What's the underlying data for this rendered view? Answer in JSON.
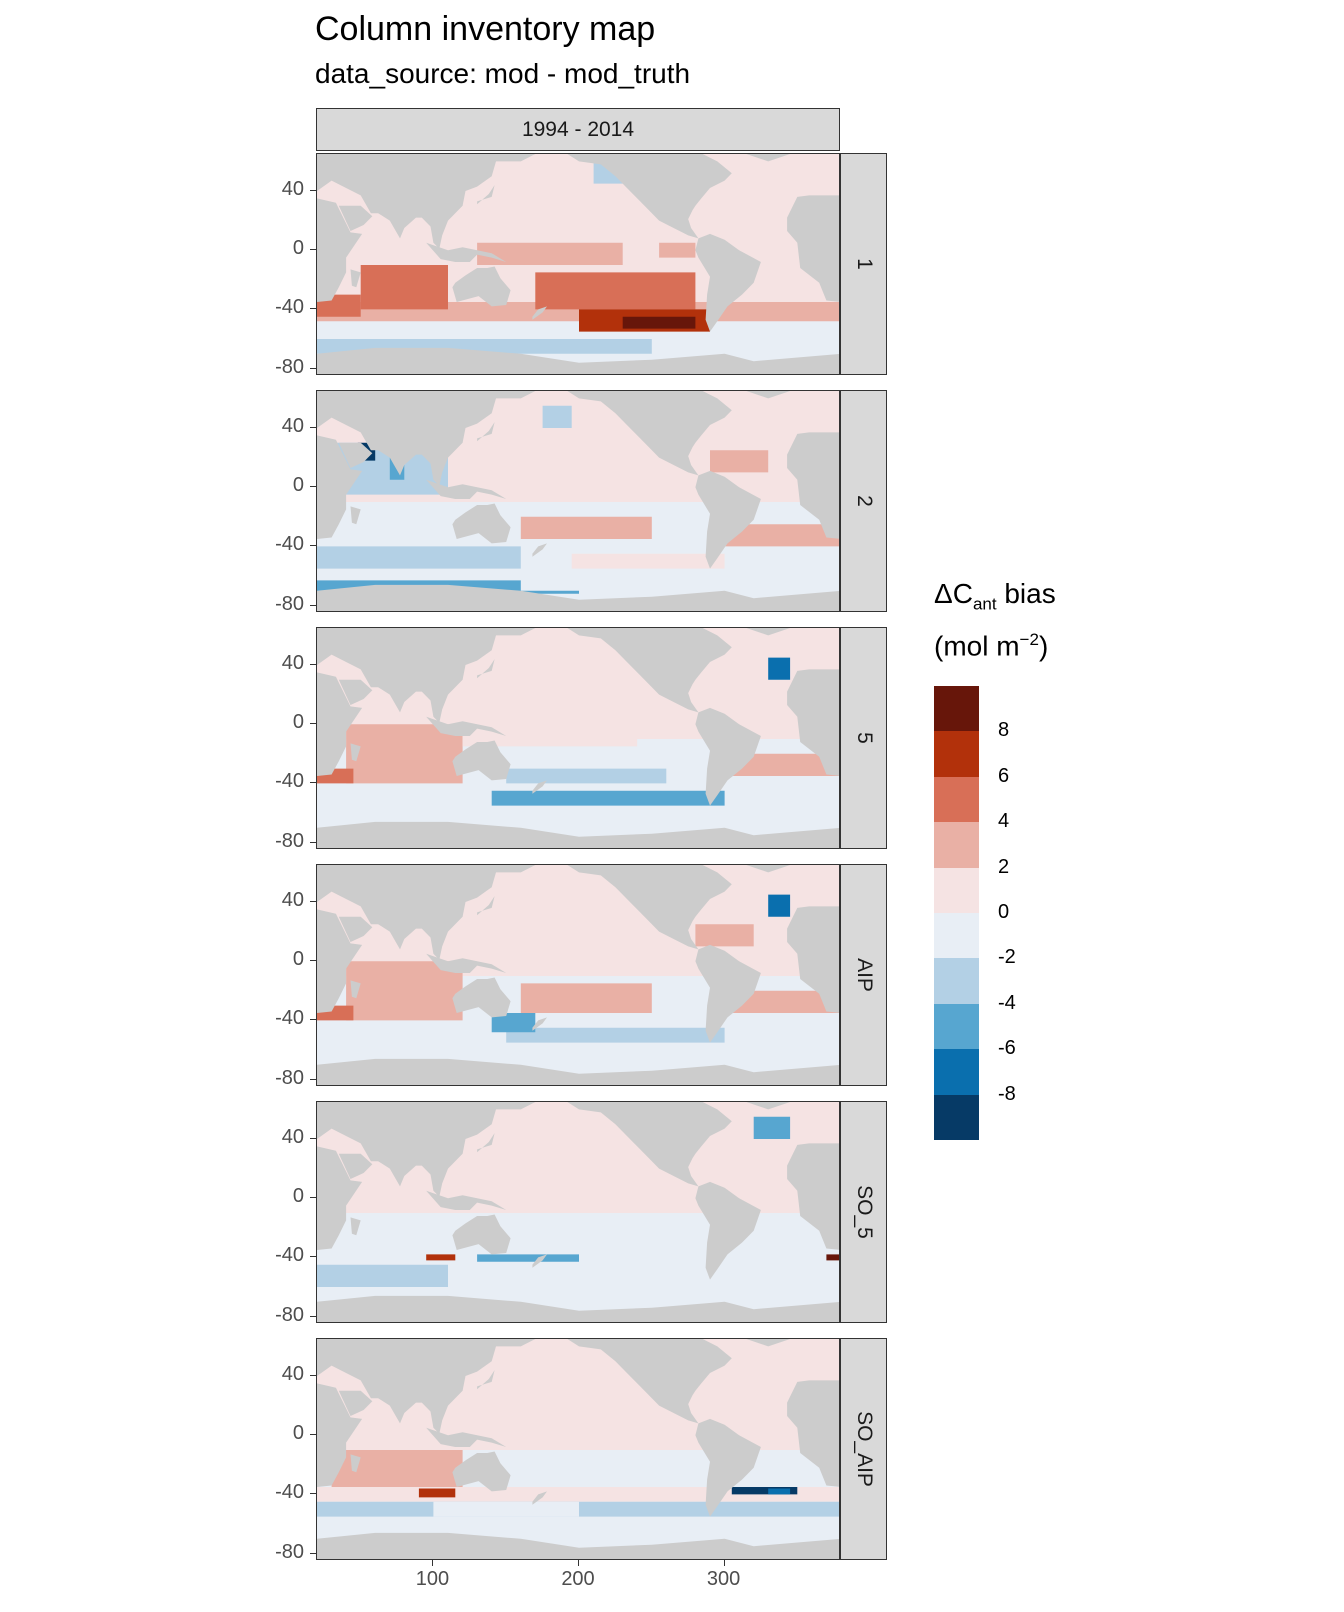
{
  "title": "Column inventory map",
  "subtitle": "data_source: mod - mod_truth",
  "facet_column": "1994 - 2014",
  "panels": [
    "1",
    "2",
    "5",
    "AIP",
    "SO_5",
    "SO_AIP"
  ],
  "y_ticks": [
    "40",
    "0",
    "-40",
    "-80"
  ],
  "x_ticks": [
    "100",
    "200",
    "300"
  ],
  "legend": {
    "title_main": "ΔC",
    "title_sub": "ant",
    "title_rest": " bias",
    "unit_open": "(mol m",
    "unit_sup": "−2",
    "unit_close": ")",
    "labels": [
      "8",
      "6",
      "4",
      "2",
      "0",
      "-2",
      "-4",
      "-6",
      "-8"
    ],
    "colors": [
      "#67160a",
      "#b2310b",
      "#d86f57",
      "#e9b0a5",
      "#f5e3e3",
      "#e8eef5",
      "#b3d0e5",
      "#57a6d0",
      "#0a6fae",
      "#063a66"
    ]
  },
  "chart_data": {
    "type": "heatmap",
    "title": "Column inventory map",
    "subtitle": "data_source: mod - mod_truth",
    "facet_column": [
      "1994 - 2014"
    ],
    "facet_rows": [
      "1",
      "2",
      "5",
      "AIP",
      "SO_5",
      "SO_AIP"
    ],
    "xlim": [
      20,
      380
    ],
    "ylim": [
      -85,
      65
    ],
    "x_ticks": [
      100,
      200,
      300
    ],
    "y_ticks": [
      40,
      0,
      -40,
      -80
    ],
    "land_color": "#cccccc",
    "colorbar_breaks": [
      10,
      8,
      6,
      4,
      2,
      0,
      -2,
      -4,
      -6,
      -8,
      -10
    ],
    "colorbar_labels": [
      "8",
      "6",
      "4",
      "2",
      "0",
      "-2",
      "-4",
      "-6",
      "-8"
    ],
    "panel_patterns": {
      "1": {
        "tropics": 4,
        "south_mid": 5,
        "south_pacific_core": 9,
        "north": 1,
        "southern_edge": -3
      },
      "2": {
        "indian": -4,
        "south_mid": 3,
        "southern_ocean": -3,
        "north": 1
      },
      "5": {
        "indian": 4,
        "pacific": 1,
        "south_pacific": -3,
        "north": 1
      },
      "AIP": {
        "indian": 4,
        "pacific": 3,
        "south_pacific": -4,
        "north": 1
      },
      "SO_5": {
        "south_band": -3,
        "north": 1,
        "front": 6
      },
      "SO_AIP": {
        "indian": 3,
        "south_band": -2,
        "atlantic_band": -9,
        "north": 1
      }
    }
  }
}
